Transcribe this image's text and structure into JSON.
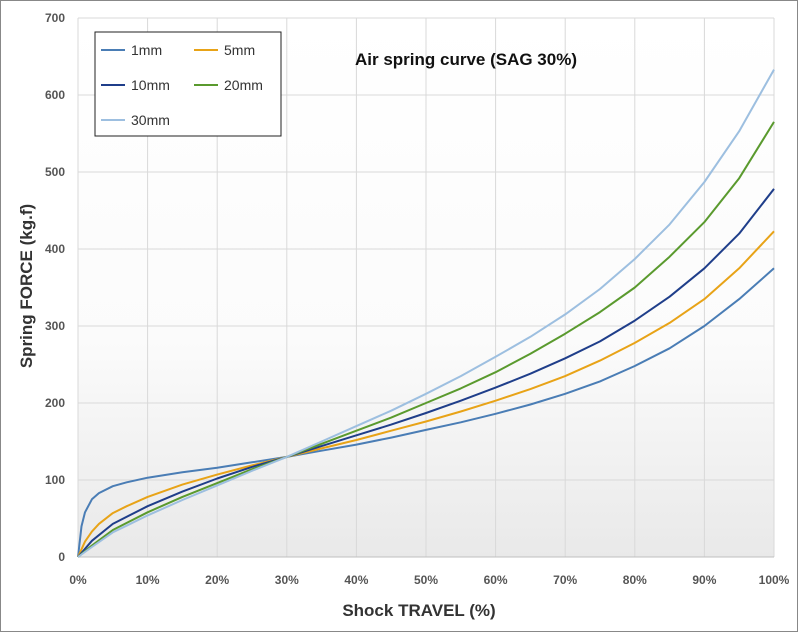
{
  "chart_data": {
    "type": "line",
    "title": "Air spring curve (SAG 30%)",
    "xlabel": "Shock TRAVEL (%)",
    "ylabel": "Spring FORCE (kg.f)",
    "xlim": [
      0,
      100
    ],
    "ylim": [
      0,
      700
    ],
    "x_ticks": [
      "0%",
      "10%",
      "20%",
      "30%",
      "40%",
      "50%",
      "60%",
      "70%",
      "80%",
      "90%",
      "100%"
    ],
    "y_ticks": [
      "0",
      "100",
      "200",
      "300",
      "400",
      "500",
      "600",
      "700"
    ],
    "grid": true,
    "legend_position": "top-left",
    "series": [
      {
        "name": "1mm",
        "color": "#4a7db5",
        "x": [
          0,
          0.5,
          1,
          2,
          3,
          5,
          7,
          10,
          15,
          20,
          25,
          30,
          35,
          40,
          45,
          50,
          55,
          60,
          65,
          70,
          75,
          80,
          85,
          90,
          95,
          100
        ],
        "y": [
          0,
          40,
          58,
          75,
          83,
          92,
          97,
          103,
          110,
          116,
          123,
          130,
          138,
          146,
          155,
          165,
          175,
          186,
          198,
          212,
          228,
          248,
          271,
          300,
          335,
          375
        ]
      },
      {
        "name": "5mm",
        "color": "#e8a317",
        "x": [
          0,
          1,
          2,
          3,
          5,
          7,
          10,
          15,
          20,
          25,
          30,
          35,
          40,
          45,
          50,
          55,
          60,
          65,
          70,
          75,
          80,
          85,
          90,
          95,
          100
        ],
        "y": [
          0,
          20,
          33,
          43,
          57,
          66,
          78,
          94,
          107,
          119,
          130,
          141,
          152,
          164,
          176,
          189,
          203,
          218,
          235,
          255,
          278,
          304,
          335,
          375,
          423
        ]
      },
      {
        "name": "10mm",
        "color": "#1f3e8a",
        "x": [
          0,
          2,
          5,
          10,
          15,
          20,
          25,
          30,
          35,
          40,
          45,
          50,
          55,
          60,
          65,
          70,
          75,
          80,
          85,
          90,
          95,
          100
        ],
        "y": [
          0,
          21,
          43,
          66,
          85,
          102,
          117,
          130,
          144,
          158,
          172,
          187,
          203,
          220,
          238,
          258,
          280,
          307,
          338,
          375,
          420,
          478
        ]
      },
      {
        "name": "20mm",
        "color": "#5a9a2e",
        "x": [
          0,
          2,
          5,
          10,
          15,
          20,
          25,
          30,
          35,
          40,
          45,
          50,
          55,
          60,
          65,
          70,
          75,
          80,
          85,
          90,
          95,
          100
        ],
        "y": [
          0,
          15,
          35,
          58,
          78,
          96,
          114,
          130,
          147,
          164,
          181,
          200,
          219,
          240,
          264,
          290,
          318,
          350,
          390,
          435,
          492,
          565
        ]
      },
      {
        "name": "30mm",
        "color": "#9dbfe0",
        "x": [
          0,
          2,
          5,
          10,
          15,
          20,
          25,
          30,
          35,
          40,
          45,
          50,
          55,
          60,
          65,
          70,
          75,
          80,
          85,
          90,
          95,
          100
        ],
        "y": [
          0,
          13,
          32,
          54,
          74,
          93,
          112,
          130,
          150,
          170,
          190,
          212,
          235,
          260,
          286,
          315,
          348,
          387,
          432,
          487,
          553,
          633
        ]
      }
    ]
  }
}
